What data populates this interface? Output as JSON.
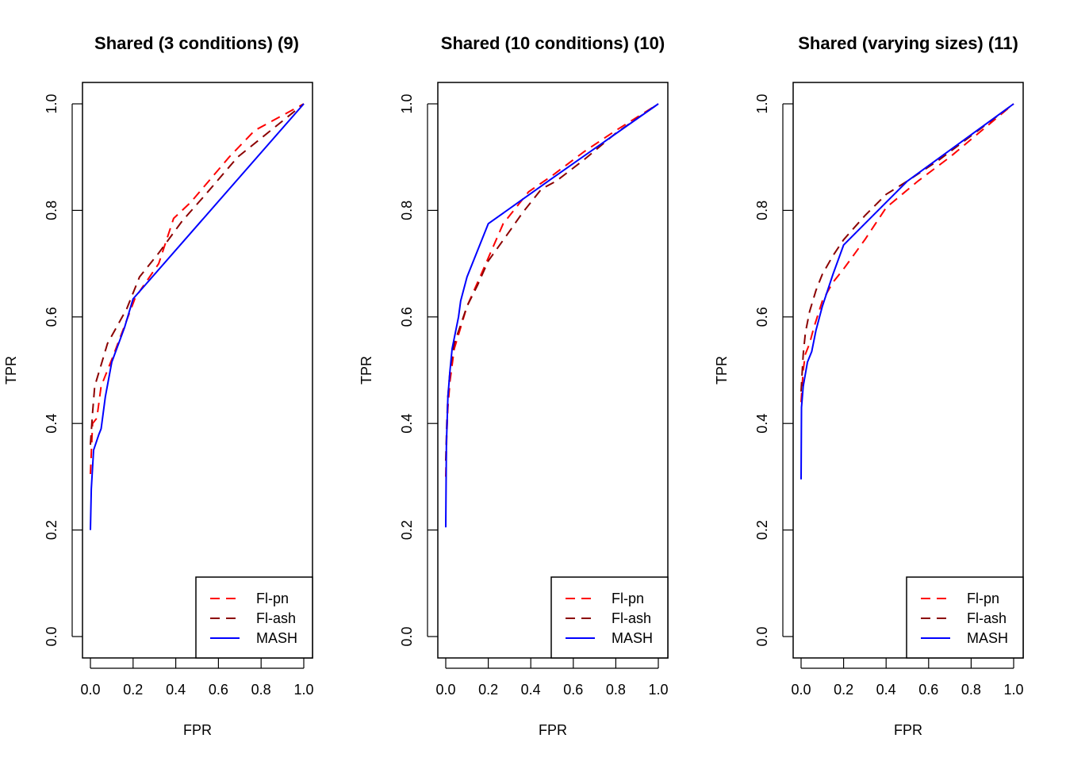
{
  "chart_data": [
    {
      "type": "line",
      "title": "Shared (3 conditions) (9)",
      "xlabel": "FPR",
      "ylabel": "TPR",
      "xlim": [
        0,
        1
      ],
      "ylim": [
        0,
        1
      ],
      "xticks": [
        "0.0",
        "0.2",
        "0.4",
        "0.6",
        "0.8",
        "1.0"
      ],
      "yticks": [
        "0.0",
        "0.2",
        "0.4",
        "0.6",
        "0.8",
        "1.0"
      ],
      "grid": false,
      "legend_position": "bottom-right",
      "series": [
        {
          "name": "Fl-pn",
          "color": "#ff0000",
          "dash": "dashed",
          "x": [
            0.0,
            0.01,
            0.03,
            0.05,
            0.1,
            0.21,
            0.32,
            0.39,
            0.47,
            0.65,
            0.77,
            1.0
          ],
          "y": [
            0.305,
            0.4,
            0.41,
            0.47,
            0.52,
            0.636,
            0.7,
            0.785,
            0.815,
            0.9,
            0.95,
            1.0
          ]
        },
        {
          "name": "Fl-ash",
          "color": "#8b0000",
          "dash": "dashed",
          "x": [
            0.0,
            0.01,
            0.02,
            0.05,
            0.08,
            0.17,
            0.23,
            0.32,
            0.43,
            0.54,
            0.69,
            1.0
          ],
          "y": [
            0.36,
            0.42,
            0.47,
            0.51,
            0.55,
            0.615,
            0.675,
            0.72,
            0.78,
            0.83,
            0.9,
            1.0
          ]
        },
        {
          "name": "MASH",
          "color": "#0000ff",
          "dash": "solid",
          "x": [
            0.0,
            0.004,
            0.015,
            0.04,
            0.05,
            0.07,
            0.1,
            0.16,
            0.2,
            1.0
          ],
          "y": [
            0.2,
            0.277,
            0.35,
            0.38,
            0.39,
            0.45,
            0.515,
            0.58,
            0.634,
            1.0
          ]
        }
      ]
    },
    {
      "type": "line",
      "title": "Shared (10 conditions) (10)",
      "xlabel": "FPR",
      "ylabel": "TPR",
      "xlim": [
        0,
        1
      ],
      "ylim": [
        0,
        1
      ],
      "xticks": [
        "0.0",
        "0.2",
        "0.4",
        "0.6",
        "0.8",
        "1.0"
      ],
      "yticks": [
        "0.0",
        "0.2",
        "0.4",
        "0.6",
        "0.8",
        "1.0"
      ],
      "grid": false,
      "legend_position": "bottom-right",
      "series": [
        {
          "name": "Fl-pn",
          "color": "#ff0000",
          "dash": "dashed",
          "x": [
            0.0,
            0.005,
            0.01,
            0.02,
            0.04,
            0.07,
            0.1,
            0.15,
            0.21,
            0.27,
            0.39,
            0.5,
            0.65,
            0.8,
            1.0
          ],
          "y": [
            0.3,
            0.38,
            0.43,
            0.48,
            0.54,
            0.58,
            0.62,
            0.665,
            0.72,
            0.775,
            0.835,
            0.865,
            0.91,
            0.95,
            1.0
          ]
        },
        {
          "name": "Fl-ash",
          "color": "#8b0000",
          "dash": "dashed",
          "x": [
            0.0,
            0.005,
            0.01,
            0.02,
            0.04,
            0.07,
            0.1,
            0.15,
            0.2,
            0.29,
            0.36,
            0.45,
            0.52,
            0.65,
            0.8,
            1.0
          ],
          "y": [
            0.33,
            0.4,
            0.45,
            0.5,
            0.55,
            0.585,
            0.62,
            0.66,
            0.705,
            0.755,
            0.795,
            0.84,
            0.855,
            0.895,
            0.945,
            1.0
          ]
        },
        {
          "name": "MASH",
          "color": "#0000ff",
          "dash": "solid",
          "x": [
            0.0,
            0.003,
            0.01,
            0.02,
            0.03,
            0.04,
            0.06,
            0.07,
            0.1,
            0.2,
            0.5,
            1.0
          ],
          "y": [
            0.205,
            0.36,
            0.45,
            0.5,
            0.54,
            0.56,
            0.6,
            0.63,
            0.675,
            0.775,
            0.86,
            1.0
          ]
        }
      ]
    },
    {
      "type": "line",
      "title": "Shared (varying sizes) (11)",
      "xlabel": "FPR",
      "ylabel": "TPR",
      "xlim": [
        0,
        1
      ],
      "ylim": [
        0,
        1
      ],
      "xticks": [
        "0.0",
        "0.2",
        "0.4",
        "0.6",
        "0.8",
        "1.0"
      ],
      "yticks": [
        "0.0",
        "0.2",
        "0.4",
        "0.6",
        "0.8",
        "1.0"
      ],
      "grid": false,
      "legend_position": "bottom-right",
      "series": [
        {
          "name": "Fl-pn",
          "color": "#ff0000",
          "dash": "dashed",
          "x": [
            0.0,
            0.01,
            0.02,
            0.04,
            0.06,
            0.1,
            0.15,
            0.2,
            0.3,
            0.4,
            0.55,
            0.7,
            0.85,
            1.0
          ],
          "y": [
            0.44,
            0.5,
            0.53,
            0.55,
            0.58,
            0.63,
            0.665,
            0.69,
            0.745,
            0.805,
            0.855,
            0.9,
            0.95,
            1.0
          ]
        },
        {
          "name": "Fl-ash",
          "color": "#8b0000",
          "dash": "dashed",
          "x": [
            0.0,
            0.01,
            0.02,
            0.04,
            0.07,
            0.1,
            0.15,
            0.2,
            0.3,
            0.4,
            0.5,
            0.65,
            0.8,
            1.0
          ],
          "y": [
            0.46,
            0.53,
            0.57,
            0.61,
            0.65,
            0.68,
            0.715,
            0.745,
            0.79,
            0.83,
            0.855,
            0.895,
            0.94,
            1.0
          ]
        },
        {
          "name": "MASH",
          "color": "#0000ff",
          "dash": "solid",
          "x": [
            0.0,
            0.002,
            0.01,
            0.03,
            0.05,
            0.07,
            0.1,
            0.15,
            0.2,
            0.5,
            1.0
          ],
          "y": [
            0.295,
            0.43,
            0.47,
            0.515,
            0.535,
            0.575,
            0.62,
            0.68,
            0.735,
            0.855,
            1.0
          ]
        }
      ]
    }
  ]
}
